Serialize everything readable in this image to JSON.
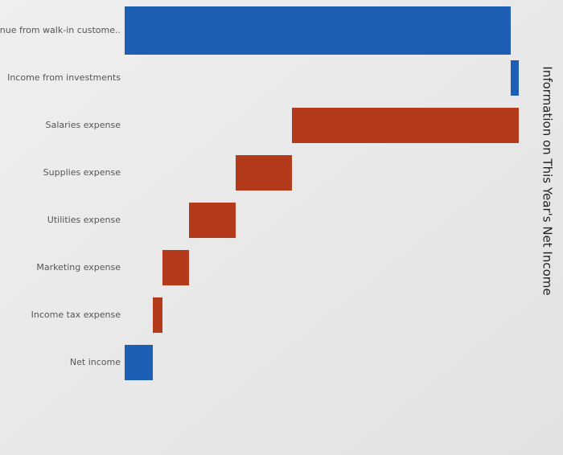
{
  "chart_data": {
    "type": "waterfall",
    "title": "Information on This Year's Net Income",
    "categories": [
      "Revenue from walk-in custome..",
      "Income from investments",
      "Salaries expense",
      "Supplies expense",
      "Utilities expense",
      "Marketing expense",
      "Income tax expense",
      "Net income"
    ],
    "values": [
      480,
      10,
      -282,
      -70,
      -58,
      -33,
      -12,
      35
    ],
    "measure": [
      "relative",
      "relative",
      "relative",
      "relative",
      "relative",
      "relative",
      "relative",
      "total"
    ],
    "colors": {
      "increase": "#1d5fb4",
      "decrease": "#b43a1c",
      "total": "#1d5fb4"
    },
    "xlim": [
      0,
      500
    ]
  }
}
